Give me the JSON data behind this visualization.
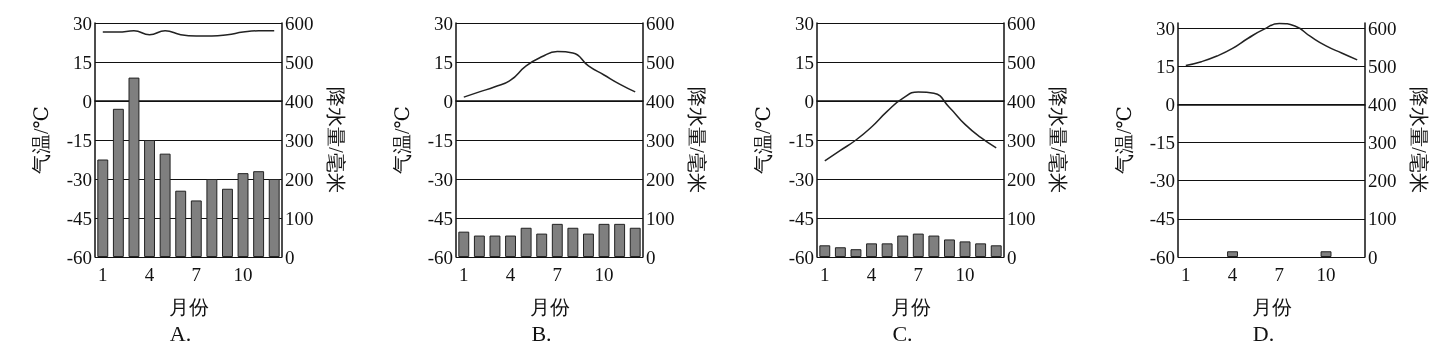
{
  "chart_data": [
    {
      "type": "bar",
      "title": "A.",
      "xlabel": "月份",
      "ylabel": "气温/℃",
      "y2label": "降水量/毫米",
      "categories": [
        "1",
        null,
        null,
        "4",
        null,
        null,
        "7",
        null,
        null,
        "10",
        null,
        null
      ],
      "ylim": [
        -60,
        30
      ],
      "yticks": [
        -60,
        -45,
        -30,
        -15,
        0,
        15,
        30
      ],
      "y2lim": [
        0,
        600
      ],
      "y2ticks": [
        0,
        100,
        200,
        300,
        400,
        500,
        600
      ],
      "grid": "y",
      "marker": "none",
      "series": [
        {
          "axis": "y2",
          "color": "#7f7f7f",
          "values": [
            250,
            380,
            460,
            300,
            265,
            170,
            145,
            200,
            175,
            215,
            220,
            200
          ]
        },
        {
          "type": "line",
          "color": "#222222",
          "values": [
            26.5,
            26.5,
            27,
            25.5,
            27,
            25.5,
            25,
            25,
            25.5,
            26.5,
            27,
            27
          ]
        }
      ]
    },
    {
      "type": "bar",
      "title": "B.",
      "xlabel": "月份",
      "ylabel": "气温/℃",
      "y2label": "降水量/毫米",
      "categories": [
        "1",
        null,
        null,
        "4",
        null,
        null,
        "7",
        null,
        null,
        "10",
        null,
        null
      ],
      "ylim": [
        -60,
        30
      ],
      "yticks": [
        -60,
        -45,
        -30,
        -15,
        0,
        15,
        30
      ],
      "y2lim": [
        0,
        600
      ],
      "y2ticks": [
        0,
        100,
        200,
        300,
        400,
        500,
        600
      ],
      "grid": "y",
      "marker": "none",
      "series": [
        {
          "axis": "y2",
          "color": "#7f7f7f",
          "values": [
            65,
            55,
            55,
            55,
            75,
            60,
            85,
            75,
            60,
            85,
            85,
            75
          ]
        },
        {
          "type": "line",
          "color": "#222222",
          "values": [
            1.5,
            3.5,
            5.5,
            8,
            13.5,
            17,
            19,
            18.5,
            13.5,
            10,
            6.5,
            3.5
          ]
        }
      ]
    },
    {
      "type": "bar",
      "title": "C.",
      "xlabel": "月份",
      "ylabel": "气温/℃",
      "y2label": "降水量/毫米",
      "categories": [
        "1",
        null,
        null,
        "4",
        null,
        null,
        "7",
        null,
        null,
        "10",
        null,
        null
      ],
      "ylim": [
        -60,
        30
      ],
      "yticks": [
        -60,
        -45,
        -30,
        -15,
        0,
        15,
        30
      ],
      "y2lim": [
        0,
        600
      ],
      "y2ticks": [
        0,
        100,
        200,
        300,
        400,
        500,
        600
      ],
      "grid": "y",
      "marker": "none",
      "series": [
        {
          "axis": "y2",
          "color": "#7f7f7f",
          "values": [
            30,
            25,
            20,
            35,
            35,
            55,
            60,
            55,
            45,
            40,
            35,
            30
          ]
        },
        {
          "type": "line",
          "color": "#222222",
          "values": [
            -23,
            -19,
            -15,
            -10,
            -4,
            1,
            3.5,
            3,
            -2.5,
            -9,
            -14,
            -18
          ]
        }
      ]
    },
    {
      "type": "bar",
      "title": "D.",
      "xlabel": "月份",
      "ylabel": "气温/℃",
      "y2label": "降水量/毫米",
      "categories": [
        "1",
        null,
        null,
        "4",
        null,
        null,
        "7",
        null,
        null,
        "10",
        null,
        null
      ],
      "ylim": [
        -60,
        32
      ],
      "yticks": [
        -60,
        -45,
        -30,
        -15,
        0,
        15,
        30
      ],
      "y2lim": [
        0,
        613.3
      ],
      "y2ticks": [
        0,
        100,
        200,
        300,
        400,
        500,
        600
      ],
      "grid": "y",
      "marker": "none",
      "series": [
        {
          "axis": "y2",
          "color": "#7f7f7f",
          "values": [
            null,
            null,
            null,
            15,
            null,
            null,
            null,
            null,
            null,
            15,
            null,
            null
          ]
        },
        {
          "type": "line",
          "color": "#222222",
          "values": [
            15.3,
            16.8,
            19,
            22,
            26,
            29.5,
            31.8,
            30.8,
            26.7,
            23,
            20.2,
            17.5
          ]
        }
      ]
    }
  ]
}
